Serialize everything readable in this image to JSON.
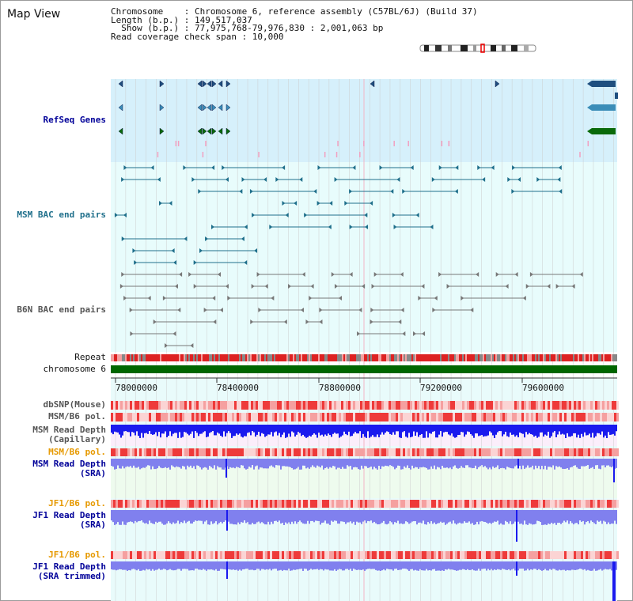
{
  "title": "Map View",
  "info": {
    "chromosome_label": "Chromosome    : Chromosome 6, reference assembly (C57BL/6J) (Build 37)",
    "length_label": "Length (b.p.) : 149,517,037",
    "show_label": "  Show (b.p.) : 77,975,768-79,976,830 : 2,001,063 bp",
    "span_label": "Read coverage check span : 10,000"
  },
  "tracks": {
    "refseq": "RefSeq Genes",
    "msm_bac": "MSM BAC end pairs",
    "b6n_bac": "B6N BAC end pairs",
    "repeat": "Repeat",
    "chromosome": "chromosome 6",
    "dbsnp": "dbSNP(Mouse)",
    "msm_b6_pol": "MSM/B6 pol.",
    "msm_depth_cap_1": "MSM Read Depth",
    "msm_depth_cap_2": "(Capillary)",
    "msm_b6_pol_2": "MSM/B6 pol.",
    "msm_depth_sra_1": "MSM Read Depth",
    "msm_depth_sra_2": "(SRA)",
    "jf1_b6_pol": "JF1/B6 pol.",
    "jf1_depth_sra_1": "JF1 Read Depth",
    "jf1_depth_sra_2": "(SRA)",
    "jf1_b6_pol_2": "JF1/B6 pol.",
    "jf1_depth_trim_1": "JF1 Read Depth",
    "jf1_depth_trim_2": "(SRA trimmed)"
  },
  "axis": {
    "ticks": [
      "78000000",
      "78400000",
      "78800000",
      "79200000",
      "79600000"
    ]
  },
  "colors": {
    "refseq_bg": "#d6f0fb",
    "bac_bg": "#e8fcfc",
    "lower_bg": "#e9fbfb",
    "msm_bac": "#1f6f8b",
    "b6n_bac": "#777777",
    "chromosome": "#006600",
    "label_blue": "#000099",
    "label_teal": "#1f6f8b",
    "label_gray": "#555555",
    "label_orange": "#e69900",
    "depth_blue": "#1a1aee",
    "depth_light": "#8080ee"
  }
}
